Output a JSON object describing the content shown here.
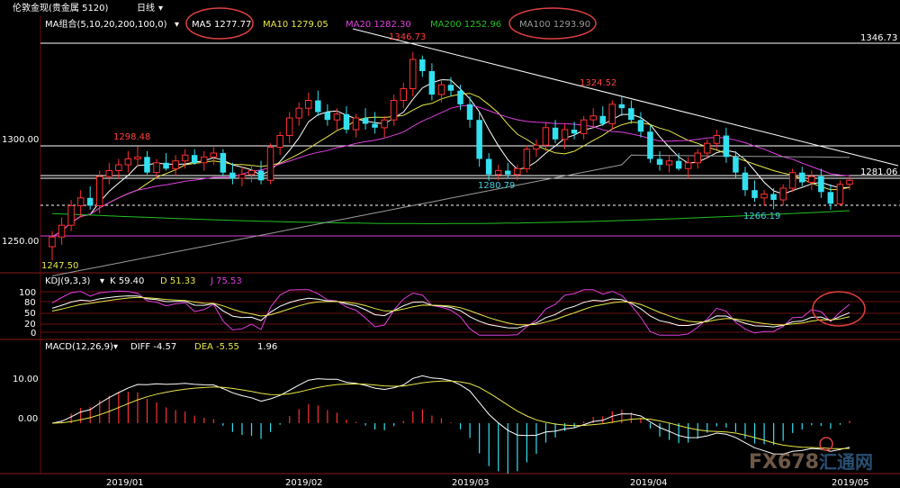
{
  "window": {
    "title": "伦敦金现(贵金属 5120)",
    "period": "日线",
    "period_caret": "▾"
  },
  "ma_header": {
    "group_label": "MA组合(5,10,20,200,100,0)",
    "caret": "▾",
    "items": [
      {
        "label": "MA5 1277.77",
        "color": "#ffffff"
      },
      {
        "label": "MA10 1279.05",
        "color": "#e8e84a"
      },
      {
        "label": "MA20 1282.30",
        "color": "#e040e0"
      },
      {
        "label": "MA200 1252.96",
        "color": "#22c022"
      },
      {
        "label": "MA100 1293.90",
        "color": "#9a9a9a"
      }
    ]
  },
  "kdj_header": {
    "label": "KDJ(9,3,3)",
    "caret": "▾",
    "items": [
      {
        "label": "K 59.40",
        "color": "#ffffff"
      },
      {
        "label": "D 51.33",
        "color": "#e8e84a"
      },
      {
        "label": "J 75.53",
        "color": "#e040e0"
      }
    ]
  },
  "macd_header": {
    "label": "MACD(12,26,9)",
    "caret": "▾",
    "items": [
      {
        "label": "DIFF -4.57",
        "color": "#ffffff"
      },
      {
        "label": "DEA -5.55",
        "color": "#e8e84a"
      },
      {
        "label": "1.96",
        "color": "#ffffff"
      }
    ]
  },
  "price_axis": {
    "ticks": [
      "1300.00",
      "1250.00"
    ]
  },
  "kdj_axis": {
    "ticks": [
      "100",
      "80",
      "50",
      "20",
      "0"
    ]
  },
  "macd_axis": {
    "ticks": [
      "10.00",
      "0.00"
    ]
  },
  "date_axis": {
    "ticks": [
      "2019/01",
      "2019/02",
      "2019/03",
      "2019/04",
      "2019/05"
    ]
  },
  "price_annotations": [
    {
      "text": "1346.73",
      "color": "#ff4040"
    },
    {
      "text": "1298.48",
      "color": "#ff4040"
    },
    {
      "text": "1324.52",
      "color": "#ff4040"
    },
    {
      "text": "1280.79",
      "color": "#3fd0e0"
    },
    {
      "text": "1266.19",
      "color": "#3fd0e0"
    },
    {
      "text": "1346.73",
      "color": "#ffffff"
    },
    {
      "text": "1281.06",
      "color": "#ffffff"
    },
    {
      "text": "1247.50",
      "color": "#e8e84a"
    }
  ],
  "watermark": {
    "text": "FX678",
    "subtext": "汇通网"
  },
  "colors": {
    "up": "#ff3030",
    "down": "#33e0f0",
    "grid": "#6a1010",
    "trendline": "#ffffff",
    "highlight_circle": "#e04040"
  },
  "chart_data": {
    "type": "candlestick",
    "title": "伦敦金现(贵金属 5120) 日线",
    "x_range": [
      "2018-12",
      "2019-05"
    ],
    "price_range": [
      1235,
      1355
    ],
    "candles": [
      {
        "o": 1247,
        "h": 1255,
        "l": 1240,
        "c": 1252
      },
      {
        "o": 1252,
        "h": 1262,
        "l": 1248,
        "c": 1258
      },
      {
        "o": 1258,
        "h": 1271,
        "l": 1255,
        "c": 1268
      },
      {
        "o": 1268,
        "h": 1276,
        "l": 1262,
        "c": 1272
      },
      {
        "o": 1272,
        "h": 1278,
        "l": 1266,
        "c": 1268
      },
      {
        "o": 1268,
        "h": 1286,
        "l": 1264,
        "c": 1283
      },
      {
        "o": 1283,
        "h": 1290,
        "l": 1279,
        "c": 1286
      },
      {
        "o": 1286,
        "h": 1292,
        "l": 1282,
        "c": 1289
      },
      {
        "o": 1289,
        "h": 1296,
        "l": 1285,
        "c": 1292
      },
      {
        "o": 1292,
        "h": 1298.5,
        "l": 1288,
        "c": 1293
      },
      {
        "o": 1293,
        "h": 1296,
        "l": 1284,
        "c": 1285
      },
      {
        "o": 1285,
        "h": 1292,
        "l": 1282,
        "c": 1290
      },
      {
        "o": 1290,
        "h": 1295,
        "l": 1286,
        "c": 1287
      },
      {
        "o": 1287,
        "h": 1294,
        "l": 1283,
        "c": 1291
      },
      {
        "o": 1291,
        "h": 1297,
        "l": 1287,
        "c": 1294
      },
      {
        "o": 1294,
        "h": 1297,
        "l": 1289,
        "c": 1290
      },
      {
        "o": 1290,
        "h": 1296,
        "l": 1286,
        "c": 1293
      },
      {
        "o": 1293,
        "h": 1298,
        "l": 1289,
        "c": 1295
      },
      {
        "o": 1295,
        "h": 1297,
        "l": 1283,
        "c": 1285
      },
      {
        "o": 1285,
        "h": 1290,
        "l": 1279,
        "c": 1282
      },
      {
        "o": 1282,
        "h": 1288,
        "l": 1278,
        "c": 1284
      },
      {
        "o": 1284,
        "h": 1289,
        "l": 1280,
        "c": 1286
      },
      {
        "o": 1286,
        "h": 1291,
        "l": 1279,
        "c": 1281
      },
      {
        "o": 1281,
        "h": 1300,
        "l": 1279,
        "c": 1298
      },
      {
        "o": 1298,
        "h": 1306,
        "l": 1294,
        "c": 1304
      },
      {
        "o": 1304,
        "h": 1316,
        "l": 1300,
        "c": 1313
      },
      {
        "o": 1313,
        "h": 1321,
        "l": 1309,
        "c": 1318
      },
      {
        "o": 1318,
        "h": 1326,
        "l": 1314,
        "c": 1322
      },
      {
        "o": 1322,
        "h": 1327,
        "l": 1314,
        "c": 1316
      },
      {
        "o": 1316,
        "h": 1320,
        "l": 1309,
        "c": 1312
      },
      {
        "o": 1312,
        "h": 1318,
        "l": 1307,
        "c": 1315
      },
      {
        "o": 1315,
        "h": 1319,
        "l": 1305,
        "c": 1307
      },
      {
        "o": 1307,
        "h": 1315,
        "l": 1303,
        "c": 1313
      },
      {
        "o": 1313,
        "h": 1318,
        "l": 1307,
        "c": 1310
      },
      {
        "o": 1310,
        "h": 1316,
        "l": 1305,
        "c": 1308
      },
      {
        "o": 1308,
        "h": 1314,
        "l": 1303,
        "c": 1312
      },
      {
        "o": 1312,
        "h": 1325,
        "l": 1309,
        "c": 1322
      },
      {
        "o": 1322,
        "h": 1331,
        "l": 1318,
        "c": 1328
      },
      {
        "o": 1328,
        "h": 1346.7,
        "l": 1324,
        "c": 1343
      },
      {
        "o": 1343,
        "h": 1345,
        "l": 1334,
        "c": 1337
      },
      {
        "o": 1337,
        "h": 1341,
        "l": 1322,
        "c": 1325
      },
      {
        "o": 1325,
        "h": 1333,
        "l": 1321,
        "c": 1330
      },
      {
        "o": 1330,
        "h": 1334,
        "l": 1324,
        "c": 1327
      },
      {
        "o": 1327,
        "h": 1330,
        "l": 1317,
        "c": 1320
      },
      {
        "o": 1320,
        "h": 1324,
        "l": 1308,
        "c": 1312
      },
      {
        "o": 1312,
        "h": 1316,
        "l": 1288,
        "c": 1292
      },
      {
        "o": 1292,
        "h": 1295,
        "l": 1280.8,
        "c": 1284
      },
      {
        "o": 1284,
        "h": 1289,
        "l": 1281,
        "c": 1286
      },
      {
        "o": 1286,
        "h": 1290,
        "l": 1282,
        "c": 1284
      },
      {
        "o": 1284,
        "h": 1289,
        "l": 1281,
        "c": 1287
      },
      {
        "o": 1287,
        "h": 1299,
        "l": 1285,
        "c": 1297
      },
      {
        "o": 1297,
        "h": 1302,
        "l": 1293,
        "c": 1299
      },
      {
        "o": 1299,
        "h": 1311,
        "l": 1296,
        "c": 1308
      },
      {
        "o": 1308,
        "h": 1312,
        "l": 1300,
        "c": 1302
      },
      {
        "o": 1302,
        "h": 1310,
        "l": 1297,
        "c": 1307
      },
      {
        "o": 1307,
        "h": 1311,
        "l": 1302,
        "c": 1305
      },
      {
        "o": 1305,
        "h": 1314,
        "l": 1302,
        "c": 1312
      },
      {
        "o": 1312,
        "h": 1318,
        "l": 1308,
        "c": 1314
      },
      {
        "o": 1314,
        "h": 1319,
        "l": 1309,
        "c": 1310
      },
      {
        "o": 1310,
        "h": 1322,
        "l": 1307,
        "c": 1320
      },
      {
        "o": 1320,
        "h": 1324.5,
        "l": 1314,
        "c": 1318
      },
      {
        "o": 1318,
        "h": 1322,
        "l": 1310,
        "c": 1312
      },
      {
        "o": 1312,
        "h": 1316,
        "l": 1303,
        "c": 1306
      },
      {
        "o": 1306,
        "h": 1309,
        "l": 1290,
        "c": 1292
      },
      {
        "o": 1292,
        "h": 1296,
        "l": 1286,
        "c": 1289
      },
      {
        "o": 1289,
        "h": 1294,
        "l": 1285,
        "c": 1291
      },
      {
        "o": 1291,
        "h": 1295,
        "l": 1286,
        "c": 1287
      },
      {
        "o": 1287,
        "h": 1293,
        "l": 1282,
        "c": 1290
      },
      {
        "o": 1290,
        "h": 1297,
        "l": 1287,
        "c": 1295
      },
      {
        "o": 1295,
        "h": 1302,
        "l": 1292,
        "c": 1300
      },
      {
        "o": 1300,
        "h": 1307,
        "l": 1297,
        "c": 1304
      },
      {
        "o": 1304,
        "h": 1308,
        "l": 1290,
        "c": 1293
      },
      {
        "o": 1293,
        "h": 1296,
        "l": 1282,
        "c": 1285
      },
      {
        "o": 1285,
        "h": 1288,
        "l": 1273,
        "c": 1276
      },
      {
        "o": 1276,
        "h": 1281,
        "l": 1270,
        "c": 1272
      },
      {
        "o": 1272,
        "h": 1276,
        "l": 1268,
        "c": 1274
      },
      {
        "o": 1274,
        "h": 1277,
        "l": 1266.2,
        "c": 1271
      },
      {
        "o": 1271,
        "h": 1279,
        "l": 1268,
        "c": 1277
      },
      {
        "o": 1277,
        "h": 1287,
        "l": 1275,
        "c": 1285
      },
      {
        "o": 1285,
        "h": 1288,
        "l": 1278,
        "c": 1280
      },
      {
        "o": 1280,
        "h": 1286,
        "l": 1276,
        "c": 1283
      },
      {
        "o": 1283,
        "h": 1287,
        "l": 1272,
        "c": 1275
      },
      {
        "o": 1275,
        "h": 1279,
        "l": 1266,
        "c": 1269
      },
      {
        "o": 1269,
        "h": 1281,
        "l": 1268,
        "c": 1279
      },
      {
        "o": 1279,
        "h": 1283,
        "l": 1276,
        "c": 1281
      }
    ],
    "kdj_range": [
      0,
      100
    ],
    "macd_range": [
      -12,
      18
    ],
    "reference_lines": [
      1346.73,
      1281.06
    ]
  }
}
